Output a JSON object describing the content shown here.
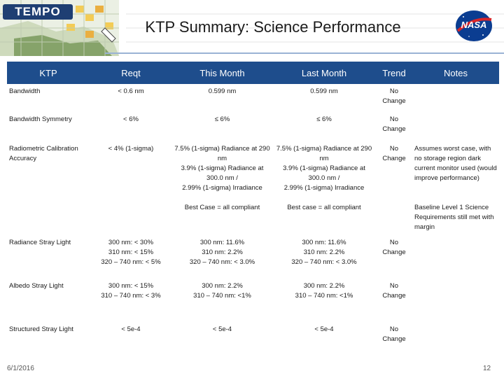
{
  "slide": {
    "title": "KTP Summary: Science Performance",
    "logo_text": "TEMPO",
    "agency_text": "NASA",
    "date": "6/1/2016",
    "page_number": "12"
  },
  "table": {
    "headers": {
      "ktp": "KTP",
      "reqt": "Reqt",
      "this_month": "This Month",
      "last_month": "Last Month",
      "trend": "Trend",
      "notes": "Notes"
    },
    "rows": [
      {
        "ktp": "Bandwidth",
        "reqt": "< 0.6 nm",
        "this_month": [
          "0.599 nm"
        ],
        "last_month": [
          "0.599 nm"
        ],
        "trend": [
          "No",
          "Change"
        ],
        "notes": []
      },
      {
        "ktp": "Bandwidth Symmetry",
        "reqt": "< 6%",
        "this_month": [
          "≤ 6%"
        ],
        "last_month": [
          "≤ 6%"
        ],
        "trend": [
          "No",
          "Change"
        ],
        "notes": []
      },
      {
        "ktp": "Radiometric Calibration Accuracy",
        "reqt": "< 4% (1-sigma)",
        "this_month": [
          "7.5% (1-sigma) Radiance at 290 nm",
          "3.9% (1-sigma) Radiance at 300.0 nm /",
          "2.99% (1-sigma) Irradiance"
        ],
        "last_month": [
          "7.5% (1-sigma) Radiance at 290 nm",
          "3.9% (1-sigma) Radiance at 300.0 nm /",
          "2.99% (1-sigma) Irradiance"
        ],
        "trend": [
          "No",
          "Change"
        ],
        "notes": [
          "Assumes worst case, with no storage region dark current monitor used (would improve performance)"
        ]
      },
      {
        "ktp": "",
        "reqt": "",
        "this_month": [
          "Best Case = all compliant"
        ],
        "last_month": [
          "Best case = all compliant"
        ],
        "trend": [],
        "notes": [
          "Baseline Level 1 Science Requirements still met with margin"
        ]
      },
      {
        "ktp": "Radiance Stray Light",
        "reqt_lines": [
          "300 nm: < 30%",
          "310 nm: < 15%",
          "320 – 740 nm: < 5%"
        ],
        "this_month": [
          "300 nm: 11.6%",
          "310 nm: 2.2%",
          "320 – 740 nm: < 3.0%"
        ],
        "last_month": [
          "300 nm: 11.6%",
          "310 nm: 2.2%",
          "320 – 740 nm: < 3.0%"
        ],
        "trend": [
          "No",
          "Change"
        ],
        "notes": []
      },
      {
        "ktp": "Albedo Stray Light",
        "reqt_lines": [
          "300 nm: < 15%",
          "310 – 740 nm: < 3%"
        ],
        "this_month": [
          "300 nm: 2.2%",
          "310 – 740 nm: <1%"
        ],
        "last_month": [
          "300 nm: 2.2%",
          "310 – 740 nm: <1%"
        ],
        "trend": [
          "No",
          "Change"
        ],
        "notes": []
      },
      {
        "ktp": "Structured Stray Light",
        "reqt": "< 5e-4",
        "this_month": [
          "< 5e-4"
        ],
        "last_month": [
          "< 5e-4"
        ],
        "trend": [
          "No",
          "Change"
        ],
        "notes": []
      }
    ]
  },
  "colors": {
    "header_bg": "#1e4d8c",
    "tempo_blue": "#1f3f73",
    "nasa_blue": "#0b3d91",
    "nasa_red": "#d9262a"
  }
}
